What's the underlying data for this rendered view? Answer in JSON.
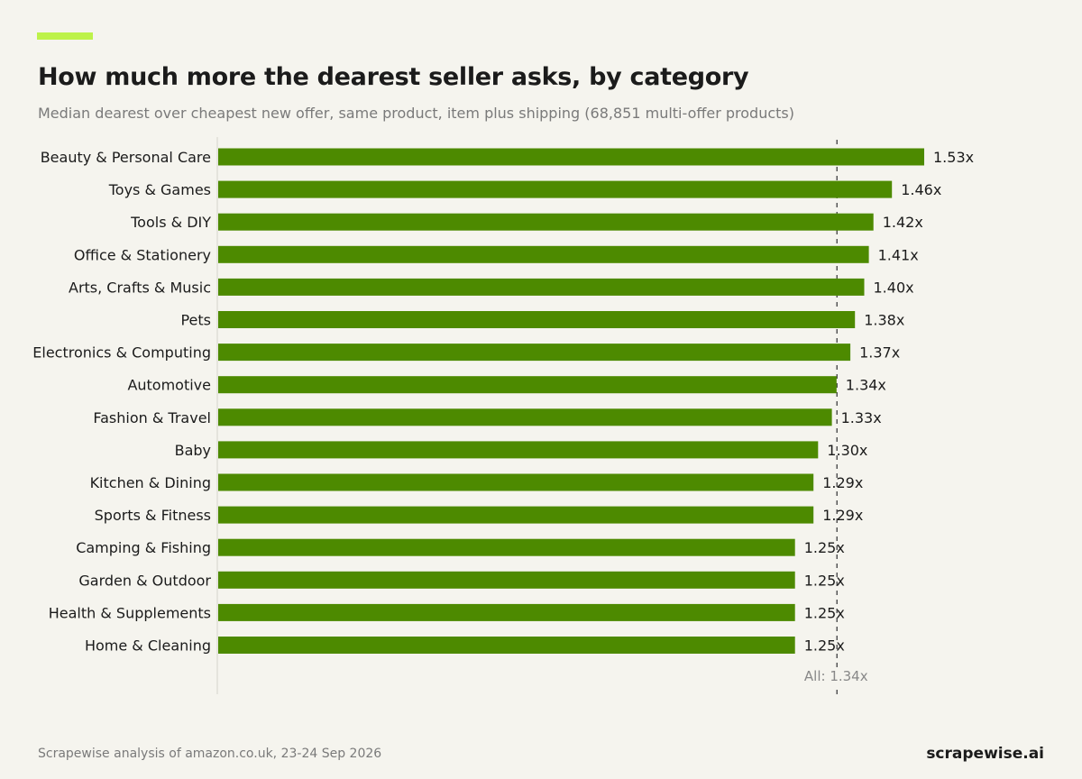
{
  "header": {
    "title": "How much more the dearest seller asks, by category",
    "subtitle": "Median dearest over cheapest new offer, same product, item plus shipping (68,851 multi-offer products)"
  },
  "colors": {
    "accent": "#bdf24a",
    "bar": "#4d8a00",
    "axis": "#d5d3cc",
    "reference_line": "#555555",
    "reference_text": "#888888"
  },
  "chart_data": {
    "type": "bar",
    "orientation": "horizontal",
    "categories": [
      "Beauty & Personal Care",
      "Toys & Games",
      "Tools & DIY",
      "Office & Stationery",
      "Arts, Crafts & Music",
      "Pets",
      "Electronics & Computing",
      "Automotive",
      "Fashion & Travel",
      "Baby",
      "Kitchen & Dining",
      "Sports & Fitness",
      "Camping & Fishing",
      "Garden & Outdoor",
      "Health & Supplements",
      "Home & Cleaning"
    ],
    "values": [
      1.53,
      1.46,
      1.42,
      1.41,
      1.4,
      1.38,
      1.37,
      1.34,
      1.33,
      1.3,
      1.29,
      1.29,
      1.25,
      1.25,
      1.25,
      1.25
    ],
    "value_labels": [
      "1.53x",
      "1.46x",
      "1.42x",
      "1.41x",
      "1.40x",
      "1.38x",
      "1.37x",
      "1.34x",
      "1.33x",
      "1.30x",
      "1.29x",
      "1.29x",
      "1.25x",
      "1.25x",
      "1.25x",
      "1.25x"
    ],
    "xlim": [
      0,
      1.53
    ],
    "grid": false,
    "reference_line": {
      "value": 1.34,
      "label": "All: 1.34x",
      "style": "dashed"
    }
  },
  "footer": {
    "source": "Scrapewise analysis of amazon.co.uk, 23-24 Sep 2026",
    "brand": "scrapewise.ai"
  }
}
